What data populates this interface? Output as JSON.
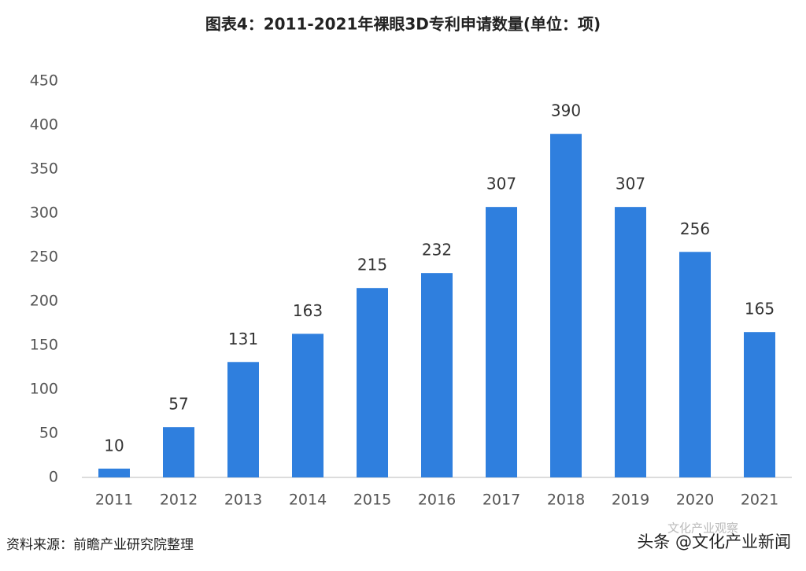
{
  "chart_data": {
    "type": "bar",
    "title": "图表4：2011-2021年裸眼3D专利申请数量(单位：项)",
    "categories": [
      "2011",
      "2012",
      "2013",
      "2014",
      "2015",
      "2016",
      "2017",
      "2018",
      "2019",
      "2020",
      "2021"
    ],
    "values": [
      10,
      57,
      131,
      163,
      215,
      232,
      307,
      390,
      307,
      256,
      165
    ],
    "color": "#2f7fde",
    "ylim": [
      0,
      450
    ],
    "yticks": [
      0,
      50,
      100,
      150,
      200,
      250,
      300,
      350,
      400,
      450
    ],
    "grid": false,
    "source": "资料来源：前瞻产业研究院整理",
    "watermark": [
      "文化产业观察",
      "头条 @文化产业新闻"
    ]
  }
}
